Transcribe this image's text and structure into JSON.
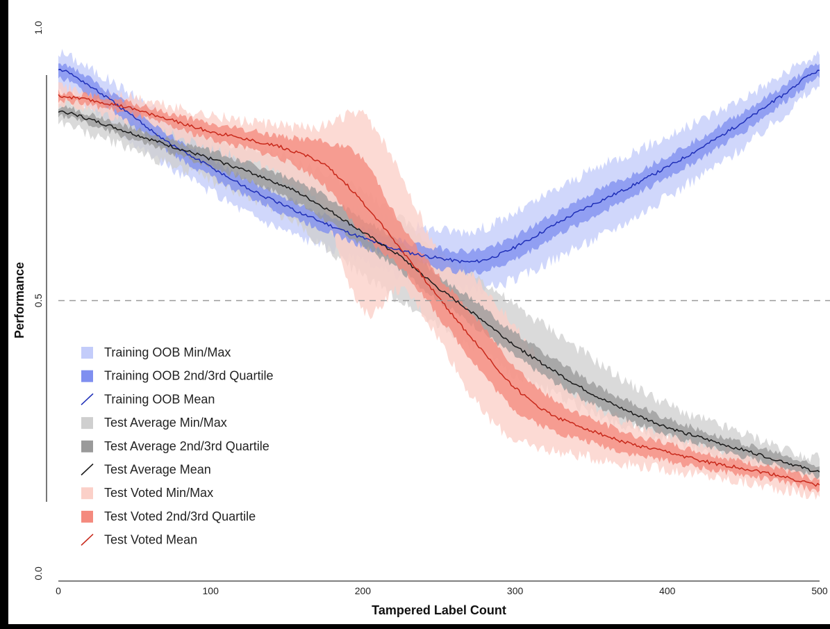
{
  "chart_data": {
    "type": "area",
    "xlabel": "Tampered Label Count",
    "ylabel": "Performance",
    "xlim": [
      0,
      500
    ],
    "ylim": [
      0.0,
      1.0
    ],
    "x_ticks": [
      "0",
      "100",
      "200",
      "300",
      "400",
      "500"
    ],
    "y_ticks": [
      "0.0",
      "0.5",
      "1.0"
    ],
    "y_tick_values": [
      0.0,
      0.5,
      1.0
    ],
    "x_tick_values": [
      0,
      100,
      200,
      300,
      400,
      500
    ],
    "reference_line": {
      "y": 0.5,
      "style": "dashed"
    },
    "grid": false,
    "legend_position": "bottom-left",
    "legend": [
      {
        "label": "Training OOB Min/Max",
        "kind": "band",
        "color": "#c3ccfa"
      },
      {
        "label": "Training OOB 2nd/3rd Quartile",
        "kind": "band",
        "color": "#7f8ff0"
      },
      {
        "label": "Training OOB Mean",
        "kind": "line",
        "color": "#1f2fb8"
      },
      {
        "label": "Test Average Min/Max",
        "kind": "band",
        "color": "#cfcfcf"
      },
      {
        "label": "Test Average 2nd/3rd Quartile",
        "kind": "band",
        "color": "#9a9a9a"
      },
      {
        "label": "Test Average Mean",
        "kind": "line",
        "color": "#1a1a1a"
      },
      {
        "label": "Test Voted Min/Max",
        "kind": "band",
        "color": "#fbd0c8"
      },
      {
        "label": "Test Voted 2nd/3rd Quartile",
        "kind": "band",
        "color": "#f48a7e"
      },
      {
        "label": "Test Voted Mean",
        "kind": "line",
        "color": "#c8281a"
      }
    ],
    "x": [
      0,
      25,
      50,
      75,
      100,
      125,
      150,
      175,
      200,
      225,
      250,
      275,
      300,
      325,
      350,
      375,
      400,
      425,
      450,
      475,
      500
    ],
    "series": [
      {
        "name": "Training OOB",
        "line_color": "#1f2fb8",
        "quartile_color": "#7f8ff0",
        "minmax_color": "#c3ccfa",
        "mean": [
          0.925,
          0.885,
          0.835,
          0.785,
          0.745,
          0.705,
          0.672,
          0.642,
          0.615,
          0.592,
          0.578,
          0.572,
          0.598,
          0.638,
          0.675,
          0.708,
          0.745,
          0.785,
          0.828,
          0.875,
          0.922
        ],
        "q1": [
          0.91,
          0.87,
          0.818,
          0.768,
          0.728,
          0.69,
          0.658,
          0.628,
          0.6,
          0.576,
          0.56,
          0.552,
          0.576,
          0.616,
          0.652,
          0.688,
          0.726,
          0.766,
          0.81,
          0.86,
          0.908
        ],
        "q3": [
          0.938,
          0.898,
          0.85,
          0.8,
          0.76,
          0.72,
          0.688,
          0.658,
          0.632,
          0.61,
          0.596,
          0.592,
          0.618,
          0.658,
          0.696,
          0.728,
          0.765,
          0.804,
          0.846,
          0.89,
          0.934
        ],
        "min": [
          0.89,
          0.845,
          0.79,
          0.74,
          0.7,
          0.66,
          0.628,
          0.598,
          0.57,
          0.545,
          0.528,
          0.52,
          0.54,
          0.575,
          0.61,
          0.648,
          0.69,
          0.735,
          0.782,
          0.838,
          0.892
        ],
        "max": [
          0.955,
          0.918,
          0.875,
          0.828,
          0.788,
          0.748,
          0.716,
          0.686,
          0.662,
          0.642,
          0.63,
          0.63,
          0.66,
          0.7,
          0.738,
          0.77,
          0.8,
          0.835,
          0.872,
          0.912,
          0.95
        ]
      },
      {
        "name": "Test Average",
        "line_color": "#1a1a1a",
        "quartile_color": "#9a9a9a",
        "minmax_color": "#cfcfcf",
        "mean": [
          0.848,
          0.828,
          0.805,
          0.782,
          0.76,
          0.736,
          0.708,
          0.67,
          0.625,
          0.58,
          0.522,
          0.472,
          0.418,
          0.372,
          0.33,
          0.296,
          0.268,
          0.246,
          0.226,
          0.206,
          0.186
        ],
        "q1": [
          0.84,
          0.818,
          0.794,
          0.77,
          0.746,
          0.72,
          0.69,
          0.648,
          0.6,
          0.555,
          0.5,
          0.45,
          0.398,
          0.352,
          0.312,
          0.28,
          0.254,
          0.234,
          0.214,
          0.196,
          0.178
        ],
        "q3": [
          0.856,
          0.838,
          0.816,
          0.794,
          0.774,
          0.752,
          0.726,
          0.692,
          0.65,
          0.605,
          0.545,
          0.495,
          0.44,
          0.394,
          0.35,
          0.314,
          0.284,
          0.26,
          0.238,
          0.218,
          0.196
        ],
        "min": [
          0.83,
          0.8,
          0.775,
          0.748,
          0.72,
          0.69,
          0.65,
          0.6,
          0.545,
          0.5,
          0.455,
          0.41,
          0.365,
          0.33,
          0.295,
          0.268,
          0.244,
          0.224,
          0.204,
          0.186,
          0.17
        ],
        "max": [
          0.87,
          0.856,
          0.838,
          0.818,
          0.8,
          0.78,
          0.76,
          0.73,
          0.7,
          0.65,
          0.59,
          0.545,
          0.49,
          0.445,
          0.395,
          0.348,
          0.31,
          0.28,
          0.256,
          0.232,
          0.21
        ]
      },
      {
        "name": "Test Voted",
        "line_color": "#c8281a",
        "quartile_color": "#f48a7e",
        "minmax_color": "#fbd0c8",
        "mean": [
          0.875,
          0.865,
          0.85,
          0.83,
          0.81,
          0.795,
          0.778,
          0.748,
          0.68,
          0.595,
          0.505,
          0.42,
          0.34,
          0.29,
          0.262,
          0.238,
          0.222,
          0.205,
          0.192,
          0.178,
          0.162
        ],
        "q1": [
          0.868,
          0.856,
          0.84,
          0.818,
          0.796,
          0.778,
          0.755,
          0.71,
          0.62,
          0.56,
          0.47,
          0.38,
          0.3,
          0.262,
          0.24,
          0.22,
          0.206,
          0.192,
          0.18,
          0.168,
          0.152
        ],
        "q3": [
          0.882,
          0.874,
          0.86,
          0.842,
          0.824,
          0.812,
          0.8,
          0.79,
          0.76,
          0.64,
          0.545,
          0.465,
          0.38,
          0.318,
          0.284,
          0.256,
          0.238,
          0.22,
          0.204,
          0.19,
          0.172
        ],
        "min": [
          0.862,
          0.846,
          0.826,
          0.802,
          0.778,
          0.755,
          0.72,
          0.66,
          0.48,
          0.52,
          0.43,
          0.31,
          0.245,
          0.225,
          0.212,
          0.2,
          0.19,
          0.178,
          0.166,
          0.154,
          0.14
        ],
        "max": [
          0.89,
          0.884,
          0.872,
          0.856,
          0.84,
          0.828,
          0.82,
          0.82,
          0.84,
          0.73,
          0.59,
          0.54,
          0.45,
          0.36,
          0.31,
          0.276,
          0.254,
          0.236,
          0.218,
          0.202,
          0.186
        ]
      }
    ]
  }
}
